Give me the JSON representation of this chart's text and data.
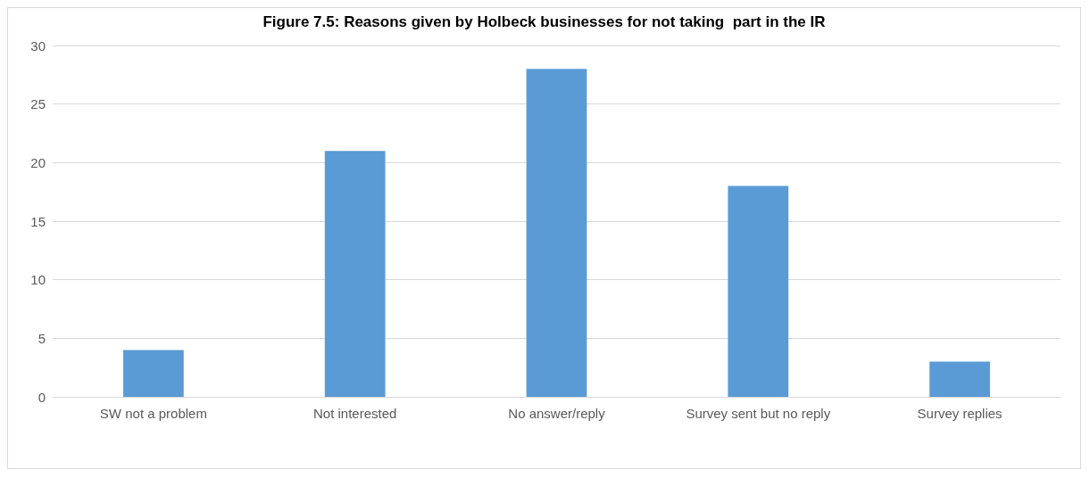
{
  "chart_data": {
    "type": "bar",
    "title": "Figure 7.5: Reasons given by Holbeck businesses for not taking  part in the IR",
    "categories": [
      "SW not a problem",
      "Not interested",
      "No answer/reply",
      "Survey sent but no reply",
      "Survey replies"
    ],
    "values": [
      4,
      21,
      28,
      18,
      3
    ],
    "color": "#5b9bd5",
    "ylim": [
      0,
      30
    ],
    "yticks": [
      0,
      5,
      10,
      15,
      20,
      25,
      30
    ],
    "grid": "y"
  }
}
